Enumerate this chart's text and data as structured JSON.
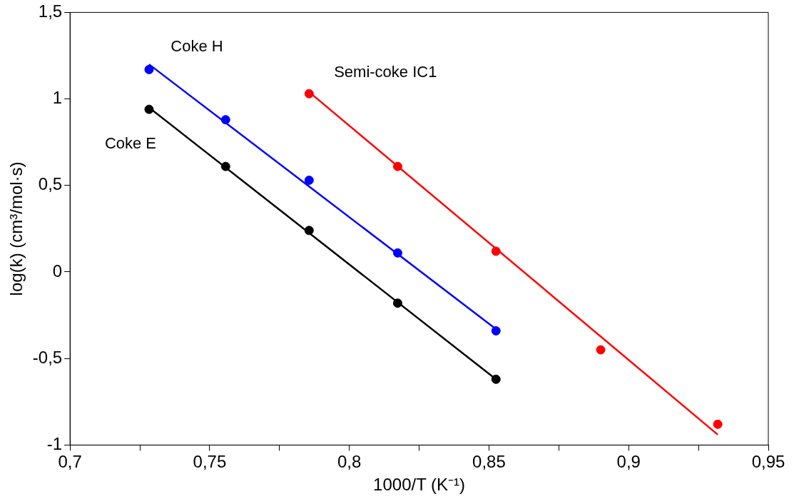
{
  "chart_data": {
    "type": "scatter",
    "xlabel": "1000/T (K⁻¹)",
    "ylabel": "log(k) (cm³/mol·s)",
    "xlim": [
      0.7,
      0.95
    ],
    "ylim": [
      -1,
      1.5
    ],
    "xticks": [
      {
        "value": 0.7,
        "label": "0,7"
      },
      {
        "value": 0.725,
        "label": null
      },
      {
        "value": 0.75,
        "label": "0,75"
      },
      {
        "value": 0.775,
        "label": null
      },
      {
        "value": 0.8,
        "label": "0,8"
      },
      {
        "value": 0.825,
        "label": null
      },
      {
        "value": 0.85,
        "label": "0,85"
      },
      {
        "value": 0.875,
        "label": null
      },
      {
        "value": 0.9,
        "label": "0,9"
      },
      {
        "value": 0.925,
        "label": null
      },
      {
        "value": 0.95,
        "label": "0,95"
      }
    ],
    "yticks": [
      -1,
      {
        "value": -0.5,
        "label": "-0,5"
      },
      0,
      {
        "value": 0.5,
        "label": "0,5"
      },
      1,
      {
        "value": 1.5,
        "label": "1,5"
      }
    ],
    "grid": false,
    "legend": false,
    "series": [
      {
        "name": "Coke H",
        "marker": "circle",
        "color": "#0000ff",
        "x": [
          0.7283,
          0.7557,
          0.7856,
          0.8173,
          0.8525
        ],
        "values": [
          1.17,
          0.88,
          0.53,
          0.11,
          -0.34
        ]
      },
      {
        "name": "Coke E",
        "marker": "circle",
        "color": "#000000",
        "x": [
          0.7283,
          0.7557,
          0.7856,
          0.8173,
          0.8525
        ],
        "values": [
          0.94,
          0.61,
          0.24,
          -0.18,
          -0.62
        ]
      },
      {
        "name": "Semi-coke IC1",
        "marker": "circle",
        "color": "#ff0000",
        "x": [
          0.7856,
          0.8173,
          0.8525,
          0.89,
          0.9319
        ],
        "values": [
          1.03,
          0.61,
          0.12,
          -0.45,
          -0.88
        ]
      },
      {
        "type": "line",
        "marker": "none",
        "color": "#0000ff",
        "x": [
          0.7283,
          0.8525
        ],
        "values": [
          1.2,
          -0.33
        ]
      },
      {
        "type": "line",
        "marker": "none",
        "color": "#000000",
        "x": [
          0.7283,
          0.8525
        ],
        "values": [
          0.95,
          -0.62
        ]
      },
      {
        "type": "line",
        "marker": "none",
        "color": "#ff0000",
        "x": [
          0.7856,
          0.9319
        ],
        "values": [
          1.04,
          -0.94
        ]
      }
    ]
  }
}
